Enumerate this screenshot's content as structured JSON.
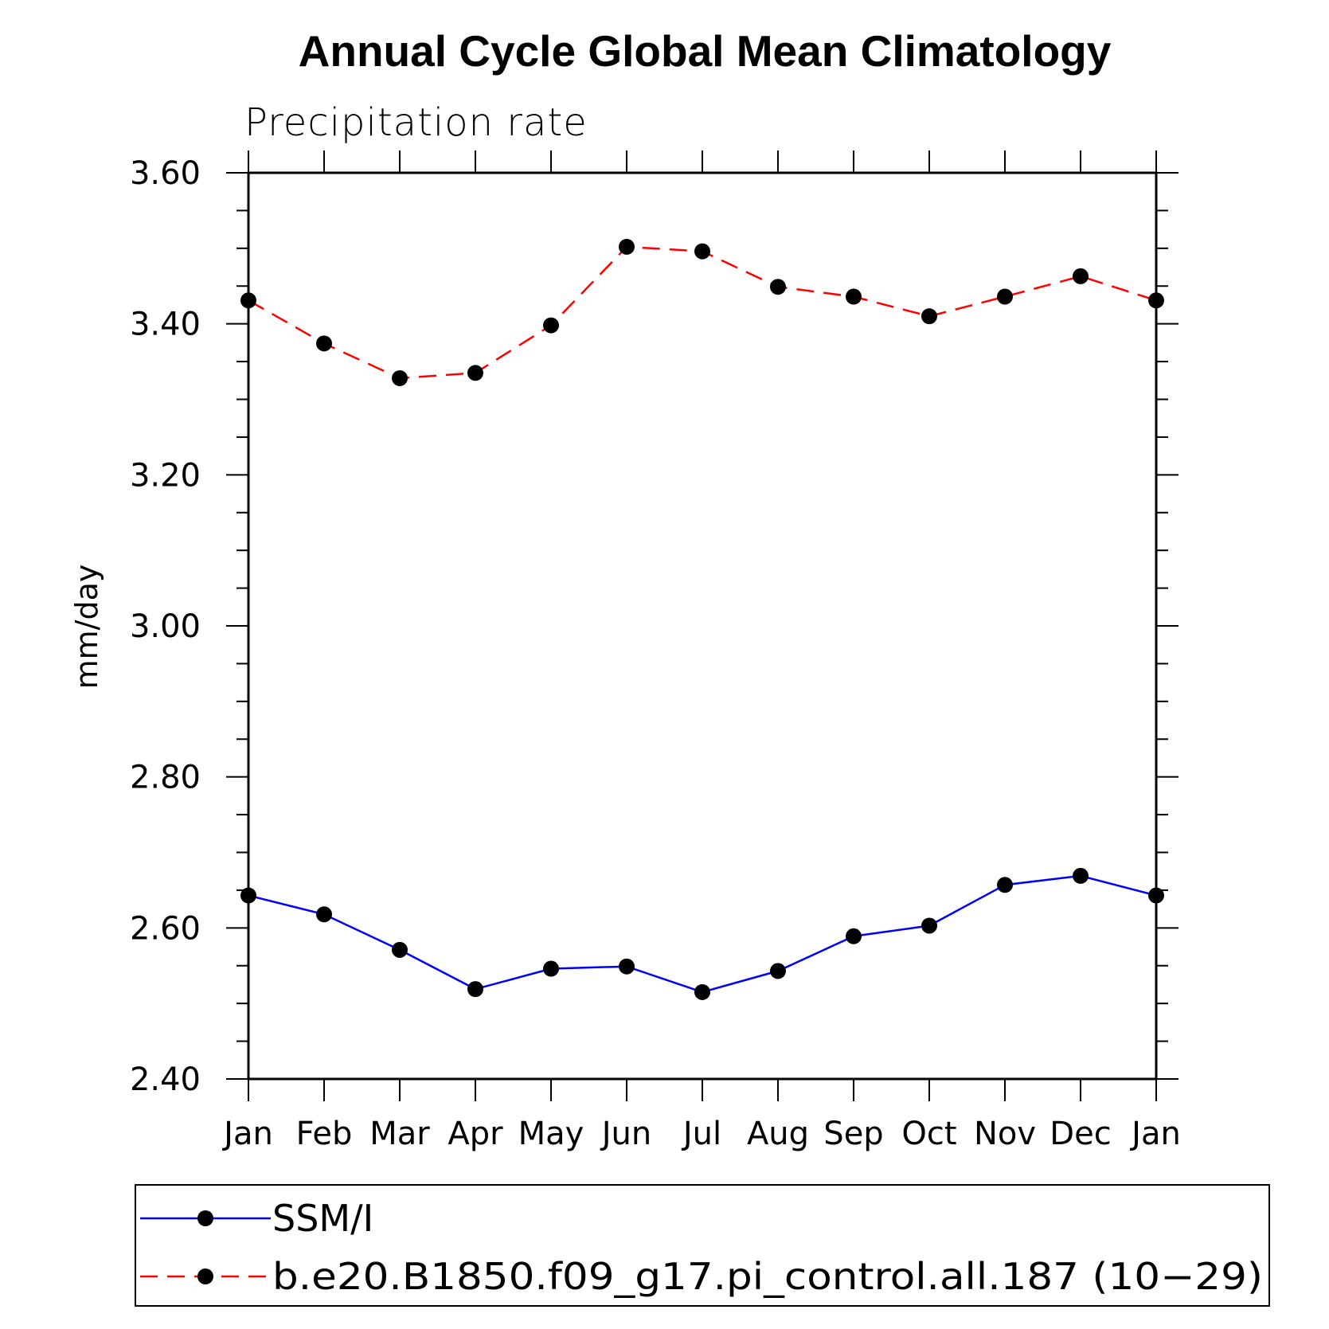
{
  "chart_data": {
    "type": "line",
    "title": "Annual Cycle Global Mean Climatology",
    "subtitle": "Precipitation rate",
    "xlabel": "",
    "ylabel": "mm/day",
    "ylim": [
      2.4,
      3.6
    ],
    "y_ticks": [
      "2.40",
      "2.60",
      "2.80",
      "3.00",
      "3.20",
      "3.40",
      "3.60"
    ],
    "categories": [
      "Jan",
      "Feb",
      "Mar",
      "Apr",
      "May",
      "Jun",
      "Jul",
      "Aug",
      "Sep",
      "Oct",
      "Nov",
      "Dec",
      "Jan"
    ],
    "series": [
      {
        "name": "SSM/I",
        "color": "#0000ff",
        "dash": "solid",
        "values": [
          2.643,
          2.618,
          2.571,
          2.519,
          2.546,
          2.549,
          2.515,
          2.543,
          2.589,
          2.603,
          2.657,
          2.669,
          2.643
        ]
      },
      {
        "name": "b.e20.B1850.f09_g17.pi_control.all.187 (10−29)",
        "color": "#ff0000",
        "dash": "dashed",
        "values": [
          3.431,
          3.374,
          3.328,
          3.335,
          3.398,
          3.502,
          3.496,
          3.449,
          3.436,
          3.41,
          3.436,
          3.463,
          3.431
        ]
      }
    ],
    "marker": "filled-circle",
    "marker_color": "#000000",
    "legend_position": "bottom"
  }
}
